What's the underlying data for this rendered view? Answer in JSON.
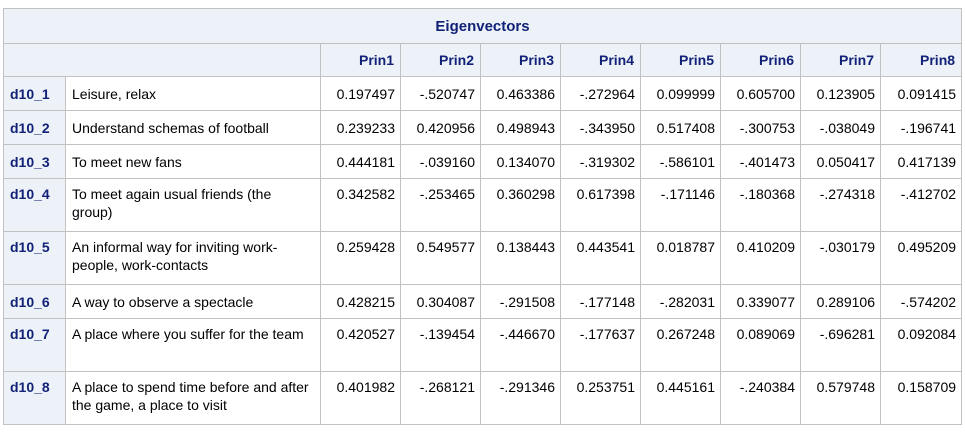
{
  "table": {
    "title": "Eigenvectors",
    "columns": [
      "Prin1",
      "Prin2",
      "Prin3",
      "Prin4",
      "Prin5",
      "Prin6",
      "Prin7",
      "Prin8"
    ],
    "rows": [
      {
        "id": "d10_1",
        "label": "Leisure, relax",
        "values": [
          "0.197497",
          "-.520747",
          "0.463386",
          "-.272964",
          "0.099999",
          "0.605700",
          "0.123905",
          "0.091415"
        ]
      },
      {
        "id": "d10_2",
        "label": "Understand schemas of football",
        "values": [
          "0.239233",
          "0.420956",
          "0.498943",
          "-.343950",
          "0.517408",
          "-.300753",
          "-.038049",
          "-.196741"
        ]
      },
      {
        "id": "d10_3",
        "label": "To meet new fans",
        "values": [
          "0.444181",
          "-.039160",
          "0.134070",
          "-.319302",
          "-.586101",
          "-.401473",
          "0.050417",
          "0.417139"
        ]
      },
      {
        "id": "d10_4",
        "label": "To meet again usual friends (the group)",
        "values": [
          "0.342582",
          "-.253465",
          "0.360298",
          "0.617398",
          "-.171146",
          "-.180368",
          "-.274318",
          "-.412702"
        ]
      },
      {
        "id": "d10_5",
        "label": "An informal way for inviting work-people, work-contacts",
        "values": [
          "0.259428",
          "0.549577",
          "0.138443",
          "0.443541",
          "0.018787",
          "0.410209",
          "-.030179",
          "0.495209"
        ]
      },
      {
        "id": "d10_6",
        "label": "A way to observe a spectacle",
        "values": [
          "0.428215",
          "0.304087",
          "-.291508",
          "-.177148",
          "-.282031",
          "0.339077",
          "0.289106",
          "-.574202"
        ]
      },
      {
        "id": "d10_7",
        "label": "A place where you suffer for the team",
        "values": [
          "0.420527",
          "-.139454",
          "-.446670",
          "-.177637",
          "0.267248",
          "0.089069",
          "-.696281",
          "0.092084"
        ]
      },
      {
        "id": "d10_8",
        "label": "A place to spend time before and after the game, a place to visit",
        "values": [
          "0.401982",
          "-.268121",
          "-.291346",
          "0.253751",
          "0.445161",
          "-.240384",
          "0.579748",
          "0.158709"
        ]
      }
    ]
  }
}
